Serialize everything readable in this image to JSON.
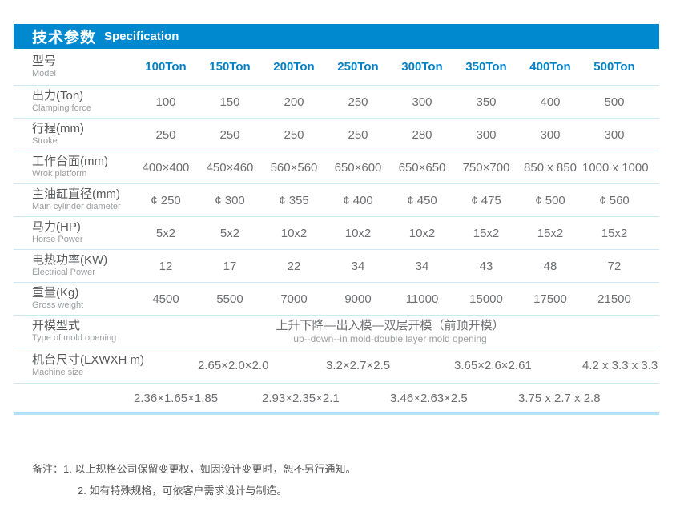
{
  "header": {
    "title_zh": "技术参数",
    "title_en": "Specification"
  },
  "table": {
    "model_row": {
      "label_zh": "型号",
      "label_en": "Model",
      "values": [
        "100Ton",
        "150Ton",
        "200Ton",
        "250Ton",
        "300Ton",
        "350Ton",
        "400Ton",
        "500Ton"
      ]
    },
    "rows": [
      {
        "label_zh": "出力(Ton)",
        "label_en": "Clamping force",
        "values": [
          "100",
          "150",
          "200",
          "250",
          "300",
          "350",
          "400",
          "500"
        ]
      },
      {
        "label_zh": "行程(mm)",
        "label_en": "Stroke",
        "values": [
          "250",
          "250",
          "250",
          "250",
          "280",
          "300",
          "300",
          "300"
        ]
      },
      {
        "label_zh": "工作台面(mm)",
        "label_en": "Wrok platform",
        "values": [
          "400×400",
          "450×460",
          "560×560",
          "650×600",
          "650×650",
          "750×700",
          "850 x 850",
          "1000 x 1000"
        ]
      },
      {
        "label_zh": "主油缸直径(mm)",
        "label_en": "Main cylinder diameter",
        "values": [
          "¢ 250",
          "¢ 300",
          "¢ 355",
          "¢ 400",
          "¢ 450",
          "¢ 475",
          "¢ 500",
          "¢ 560"
        ]
      },
      {
        "label_zh": "马力(HP)",
        "label_en": "Horse Power",
        "values": [
          "5x2",
          "5x2",
          "10x2",
          "10x2",
          "10x2",
          "15x2",
          "15x2",
          "15x2"
        ]
      },
      {
        "label_zh": "电热功率(KW)",
        "label_en": "Electrical Power",
        "values": [
          "12",
          "17",
          "22",
          "34",
          "34",
          "43",
          "48",
          "72"
        ]
      },
      {
        "label_zh": "重量(Kg)",
        "label_en": "Gross weight",
        "values": [
          "4500",
          "5500",
          "7000",
          "9000",
          "11000",
          "15000",
          "17500",
          "21500"
        ]
      }
    ],
    "mold_row": {
      "label_zh": "开模型式",
      "label_en": "Type of mold opening",
      "value_zh": "上升下降—出入模—双层开模（前顶开模）",
      "value_en": "up--down--in mold-double layer mold opening"
    },
    "machine_row_1": {
      "label_zh": "机台尺寸(LXWXH m)",
      "label_en": "Machine size",
      "values": [
        "",
        "2.65×2.0×2.0",
        "",
        "3.2×2.7×2.5",
        "",
        "3.65×2.6×2.61",
        "",
        "4.2 x 3.3 x 3.3"
      ]
    },
    "machine_row_2": {
      "values": [
        "2.36×1.65×1.85",
        "",
        "2.93×2.35×2.1",
        "",
        "3.46×2.63×2.5",
        "",
        "3.75 x 2.7 x 2.8",
        ""
      ]
    }
  },
  "notes": {
    "prefix": "备注：",
    "line1": "1. 以上规格公司保留变更权，如因设计变更时，恕不另行通知。",
    "line2": "2. 如有特殊规格，可依客户需求设计与制造。"
  },
  "colors": {
    "header_bar": "#0089ce",
    "model_text": "#0082c8",
    "label_text": "#58595b",
    "sublabel_text": "#9b9da0",
    "value_text": "#6d6e71",
    "divider": "#cde9f8",
    "bottom_divider": "#b5e0f7",
    "notes_text": "#595757"
  }
}
